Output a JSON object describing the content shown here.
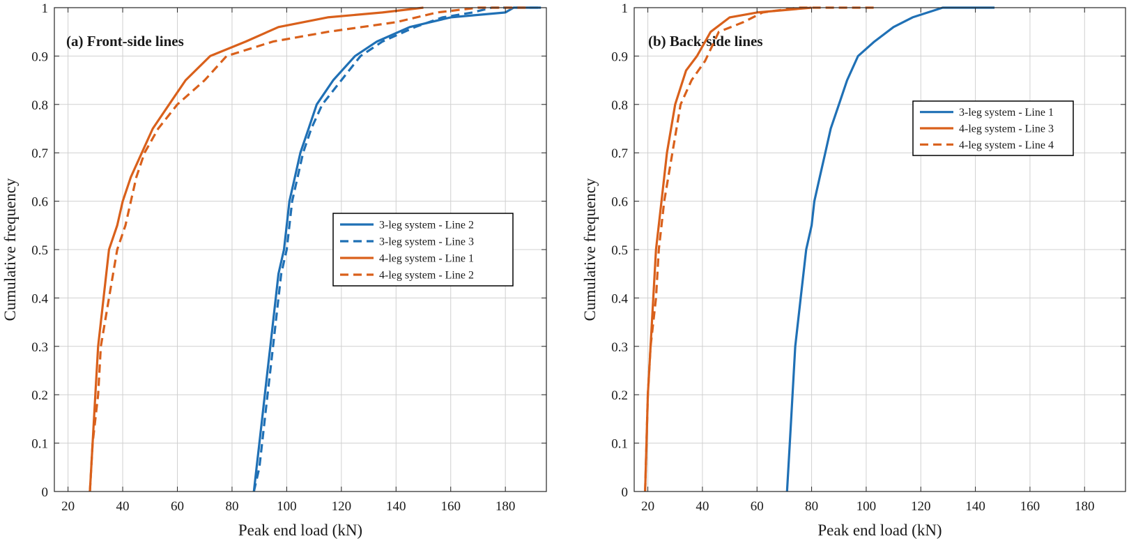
{
  "colors": {
    "blue": "#1f70b5",
    "orange": "#d9601b",
    "grid": "#d0d0d0",
    "axis": "#262626"
  },
  "chart_data": [
    {
      "type": "line",
      "title": "(a) Front-side lines",
      "xlabel": "Peak end load (kN)",
      "ylabel": "Cumulative frequency",
      "xlim": [
        15,
        195
      ],
      "ylim": [
        0,
        1
      ],
      "xticks": [
        20,
        40,
        60,
        80,
        100,
        120,
        140,
        160,
        180
      ],
      "yticks": [
        0,
        0.1,
        0.2,
        0.3,
        0.4,
        0.5,
        0.6,
        0.7,
        0.8,
        0.9,
        1
      ],
      "grid": true,
      "legend": "center-right",
      "series": [
        {
          "name": "3-leg system - Line 2",
          "color": "blue",
          "dash": false,
          "points": [
            [
              88,
              0
            ],
            [
              89,
              0.05
            ],
            [
              90,
              0.1
            ],
            [
              91,
              0.15
            ],
            [
              92,
              0.2
            ],
            [
              93,
              0.25
            ],
            [
              94,
              0.3
            ],
            [
              95,
              0.35
            ],
            [
              96,
              0.4
            ],
            [
              97,
              0.45
            ],
            [
              99,
              0.5
            ],
            [
              100,
              0.55
            ],
            [
              101,
              0.6
            ],
            [
              103,
              0.65
            ],
            [
              105,
              0.7
            ],
            [
              108,
              0.75
            ],
            [
              111,
              0.8
            ],
            [
              117,
              0.85
            ],
            [
              125,
              0.9
            ],
            [
              133,
              0.93
            ],
            [
              145,
              0.96
            ],
            [
              160,
              0.98
            ],
            [
              180,
              0.99
            ],
            [
              183,
              1.0
            ],
            [
              193,
              1.0
            ]
          ]
        },
        {
          "name": "3-leg system - Line 3",
          "color": "blue",
          "dash": true,
          "points": [
            [
              88,
              0
            ],
            [
              90,
              0.05
            ],
            [
              91,
              0.1
            ],
            [
              92,
              0.15
            ],
            [
              93,
              0.2
            ],
            [
              94,
              0.25
            ],
            [
              95,
              0.3
            ],
            [
              96,
              0.35
            ],
            [
              97,
              0.4
            ],
            [
              98,
              0.45
            ],
            [
              100,
              0.5
            ],
            [
              101,
              0.55
            ],
            [
              102,
              0.6
            ],
            [
              104,
              0.65
            ],
            [
              106,
              0.7
            ],
            [
              109,
              0.75
            ],
            [
              113,
              0.8
            ],
            [
              120,
              0.85
            ],
            [
              127,
              0.9
            ],
            [
              135,
              0.93
            ],
            [
              147,
              0.96
            ],
            [
              157,
              0.98
            ],
            [
              168,
              0.99
            ],
            [
              175,
              1.0
            ],
            [
              193,
              1.0
            ]
          ]
        },
        {
          "name": "4-leg system - Line 1",
          "color": "orange",
          "dash": false,
          "points": [
            [
              28,
              0
            ],
            [
              29,
              0.1
            ],
            [
              30,
              0.2
            ],
            [
              31,
              0.3
            ],
            [
              33,
              0.4
            ],
            [
              35,
              0.5
            ],
            [
              38,
              0.55
            ],
            [
              40,
              0.6
            ],
            [
              43,
              0.65
            ],
            [
              47,
              0.7
            ],
            [
              51,
              0.75
            ],
            [
              57,
              0.8
            ],
            [
              63,
              0.85
            ],
            [
              72,
              0.9
            ],
            [
              85,
              0.93
            ],
            [
              97,
              0.96
            ],
            [
              115,
              0.98
            ],
            [
              135,
              0.99
            ],
            [
              150,
              1.0
            ]
          ]
        },
        {
          "name": "4-leg system - Line 2",
          "color": "orange",
          "dash": true,
          "points": [
            [
              28,
              0
            ],
            [
              29,
              0.1
            ],
            [
              31,
              0.2
            ],
            [
              32,
              0.3
            ],
            [
              35,
              0.4
            ],
            [
              38,
              0.5
            ],
            [
              41,
              0.55
            ],
            [
              43,
              0.6
            ],
            [
              45,
              0.65
            ],
            [
              48,
              0.7
            ],
            [
              53,
              0.75
            ],
            [
              60,
              0.8
            ],
            [
              70,
              0.85
            ],
            [
              78,
              0.9
            ],
            [
              95,
              0.93
            ],
            [
              115,
              0.95
            ],
            [
              140,
              0.97
            ],
            [
              155,
              0.99
            ],
            [
              170,
              1.0
            ],
            [
              188,
              1.0
            ]
          ]
        }
      ]
    },
    {
      "type": "line",
      "title": "(b) Back-side lines",
      "xlabel": "Peak end load (kN)",
      "ylabel": "Cumulative frequency",
      "xlim": [
        15,
        195
      ],
      "ylim": [
        0,
        1
      ],
      "xticks": [
        20,
        40,
        60,
        80,
        100,
        120,
        140,
        160,
        180
      ],
      "yticks": [
        0,
        0.1,
        0.2,
        0.3,
        0.4,
        0.5,
        0.6,
        0.7,
        0.8,
        0.9,
        1
      ],
      "grid": true,
      "legend": "top-right",
      "series": [
        {
          "name": "3-leg system - Line 1",
          "color": "blue",
          "dash": false,
          "points": [
            [
              71,
              0
            ],
            [
              72,
              0.1
            ],
            [
              73,
              0.2
            ],
            [
              74,
              0.3
            ],
            [
              76,
              0.4
            ],
            [
              78,
              0.5
            ],
            [
              80,
              0.55
            ],
            [
              81,
              0.6
            ],
            [
              83,
              0.65
            ],
            [
              85,
              0.7
            ],
            [
              87,
              0.75
            ],
            [
              90,
              0.8
            ],
            [
              93,
              0.85
            ],
            [
              97,
              0.9
            ],
            [
              103,
              0.93
            ],
            [
              110,
              0.96
            ],
            [
              117,
              0.98
            ],
            [
              128,
              1.0
            ],
            [
              147,
              1.0
            ]
          ]
        },
        {
          "name": "4-leg system - Line 3",
          "color": "orange",
          "dash": false,
          "points": [
            [
              19,
              0
            ],
            [
              20,
              0.2
            ],
            [
              21,
              0.3
            ],
            [
              22,
              0.4
            ],
            [
              23,
              0.5
            ],
            [
              25,
              0.6
            ],
            [
              27,
              0.7
            ],
            [
              30,
              0.8
            ],
            [
              34,
              0.87
            ],
            [
              38,
              0.9
            ],
            [
              43,
              0.95
            ],
            [
              50,
              0.98
            ],
            [
              60,
              0.99
            ],
            [
              70,
              0.995
            ],
            [
              80,
              1.0
            ]
          ]
        },
        {
          "name": "4-leg system - Line 4",
          "color": "orange",
          "dash": true,
          "points": [
            [
              19,
              0
            ],
            [
              20,
              0.2
            ],
            [
              21,
              0.3
            ],
            [
              23,
              0.4
            ],
            [
              24,
              0.5
            ],
            [
              26,
              0.6
            ],
            [
              29,
              0.7
            ],
            [
              32,
              0.8
            ],
            [
              36,
              0.85
            ],
            [
              41,
              0.89
            ],
            [
              46,
              0.95
            ],
            [
              55,
              0.97
            ],
            [
              62,
              0.99
            ],
            [
              75,
              1.0
            ],
            [
              103,
              1.0
            ]
          ]
        }
      ]
    }
  ]
}
